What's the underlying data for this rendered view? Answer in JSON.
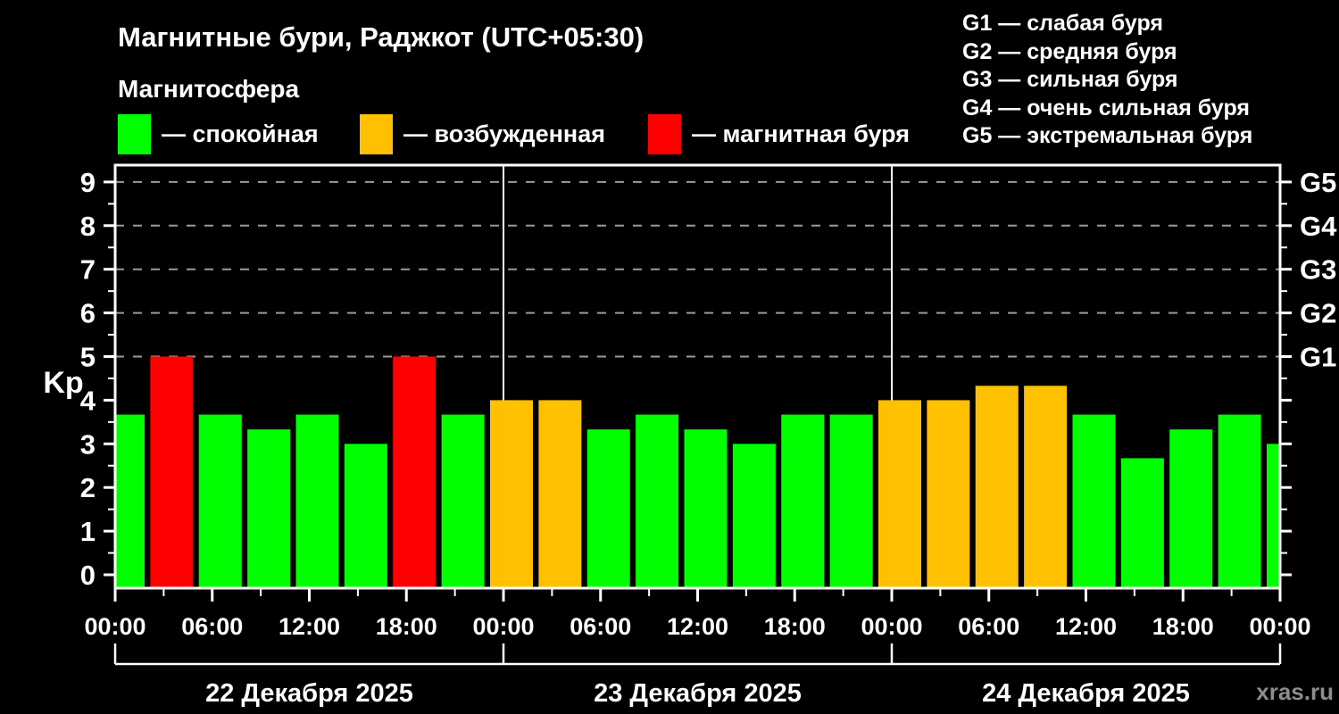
{
  "header": {
    "title": "Магнитные бури, Раджкот (UTC+05:30)",
    "subtitle": "Магнитосфера",
    "legend": [
      {
        "key": "quiet",
        "label": "— спокойная"
      },
      {
        "key": "active",
        "label": "— возбужденная"
      },
      {
        "key": "storm",
        "label": "— магнитная буря"
      }
    ],
    "g_legend": [
      "G1 — слабая буря",
      "G2 — средняя буря",
      "G3 — сильная буря",
      "G4 — очень сильная буря",
      "G5 — экстремальная буря"
    ]
  },
  "watermark": "xras.ru",
  "chart_data": {
    "type": "bar",
    "title": "Магнитные бури, Раджкот (UTC+05:30)",
    "ylabel": "Kp",
    "ylim": [
      0,
      9.4
    ],
    "yticks": [
      0,
      1,
      2,
      3,
      4,
      5,
      6,
      7,
      8,
      9
    ],
    "grid_levels": [
      5,
      6,
      7,
      8,
      9
    ],
    "g_ticks": [
      {
        "value": 5,
        "label": "G1"
      },
      {
        "value": 6,
        "label": "G2"
      },
      {
        "value": 7,
        "label": "G3"
      },
      {
        "value": 8,
        "label": "G4"
      },
      {
        "value": 9,
        "label": "G5"
      }
    ],
    "total_hours": 72,
    "hours_between_bars": 3,
    "xtick_interval_hours": 6,
    "time_labels_cycle": [
      "00:00",
      "06:00",
      "12:00",
      "18:00"
    ],
    "date_labels": [
      "22 Декабря 2025",
      "23 Декабря 2025",
      "24 Декабря 2025"
    ],
    "kp_values": [
      3.67,
      5,
      3.67,
      3.33,
      3.67,
      3,
      5,
      3.67,
      4,
      4,
      3.33,
      3.67,
      3.33,
      3,
      3.67,
      3.67,
      4,
      4,
      4.33,
      4.33,
      3.67,
      2.67,
      3.33,
      3.67,
      3
    ],
    "thresholds": {
      "active": 4,
      "storm": 5
    },
    "colors": {
      "quiet": "#00ff00",
      "active": "#ffc000",
      "storm": "#ff0000",
      "grid": "#9b9b9b",
      "axis": "#ffffff",
      "background": "#000000"
    },
    "legend_position": "top",
    "grid": "dashed horizontal at Kp 5-9 only"
  }
}
